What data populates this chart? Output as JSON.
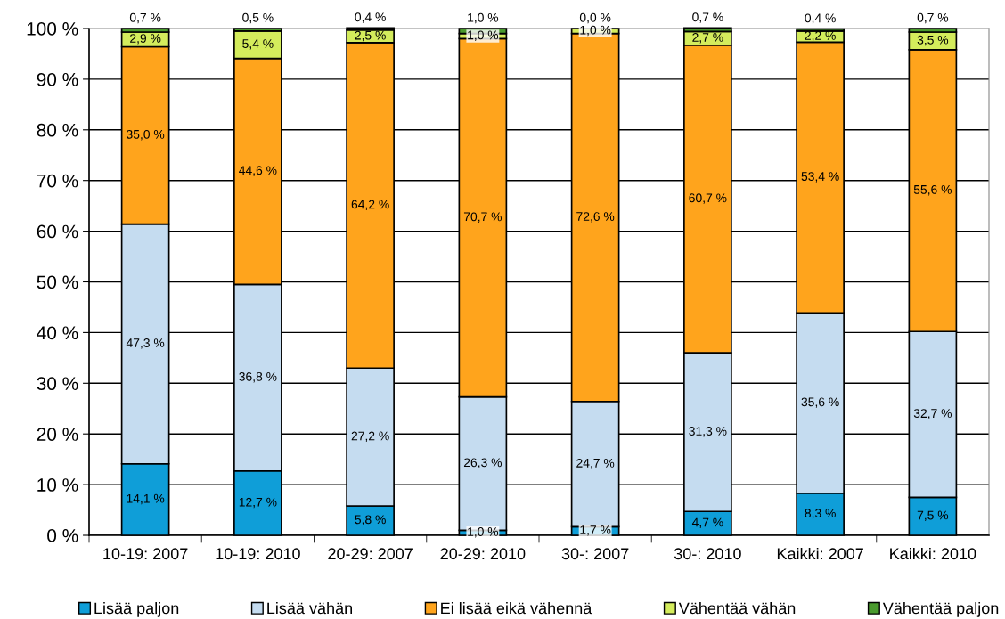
{
  "chart_data": {
    "type": "bar",
    "stacked": true,
    "categories": [
      "10-19: 2007",
      "10-19: 2010",
      "20-29: 2007",
      "20-29: 2010",
      "30-: 2007",
      "30-: 2010",
      "Kaikki: 2007",
      "Kaikki: 2010"
    ],
    "series": [
      {
        "name": "Lisää paljon",
        "color": "#0f9ed8",
        "values": [
          14.1,
          12.7,
          5.8,
          1.0,
          1.7,
          4.7,
          8.3,
          7.5
        ],
        "value_labels": [
          "14,1 %",
          "12,7 %",
          "5,8 %",
          "1,0 %",
          "1,7 %",
          "4,7 %",
          "8,3 %",
          "7,5 %"
        ]
      },
      {
        "name": "Lisää vähän",
        "color": "#c5dcf0",
        "values": [
          47.3,
          36.8,
          27.2,
          26.3,
          24.7,
          31.3,
          35.6,
          32.7
        ],
        "value_labels": [
          "47,3 %",
          "36,8 %",
          "27,2 %",
          "26,3 %",
          "24,7 %",
          "31,3 %",
          "35,6 %",
          "32,7 %"
        ]
      },
      {
        "name": "Ei lisää eikä vähennä",
        "color": "#ffa41c",
        "values": [
          35.0,
          44.6,
          64.2,
          70.7,
          72.6,
          60.7,
          53.4,
          55.6
        ],
        "value_labels": [
          "35,0 %",
          "44,6 %",
          "64,2 %",
          "70,7 %",
          "72,6 %",
          "60,7 %",
          "53,4 %",
          "55,6 %"
        ]
      },
      {
        "name": "Vähentää vähän",
        "color": "#d4ec5c",
        "values": [
          2.9,
          5.4,
          2.5,
          1.0,
          1.0,
          2.7,
          2.2,
          3.5
        ],
        "value_labels": [
          "2,9 %",
          "5,4 %",
          "2,5 %",
          "1,0 %",
          "1,0 %",
          "2,7 %",
          "2,2 %",
          "3,5 %"
        ]
      },
      {
        "name": "Vähentää paljon",
        "color": "#4a9a2e",
        "values": [
          0.7,
          0.5,
          0.4,
          1.0,
          0.0,
          0.7,
          0.4,
          0.7
        ],
        "value_labels": [
          "0,7 %",
          "0,5 %",
          "0,4 %",
          "1,0 %",
          "0,0 %",
          "0,7 %",
          "0,4 %",
          "0,7 %"
        ]
      }
    ],
    "ylim": [
      0,
      100
    ],
    "yticks": [
      {
        "value": 0,
        "label": "0 %"
      },
      {
        "value": 10,
        "label": "10 %"
      },
      {
        "value": 20,
        "label": "20 %"
      },
      {
        "value": 30,
        "label": "30 %"
      },
      {
        "value": 40,
        "label": "40 %"
      },
      {
        "value": 50,
        "label": "50 %"
      },
      {
        "value": 60,
        "label": "60 %"
      },
      {
        "value": 70,
        "label": "70 %"
      },
      {
        "value": 80,
        "label": "80 %"
      },
      {
        "value": 90,
        "label": "90 %"
      },
      {
        "value": 100,
        "label": "100 %"
      }
    ],
    "grid": "y",
    "legend": "bottom"
  }
}
